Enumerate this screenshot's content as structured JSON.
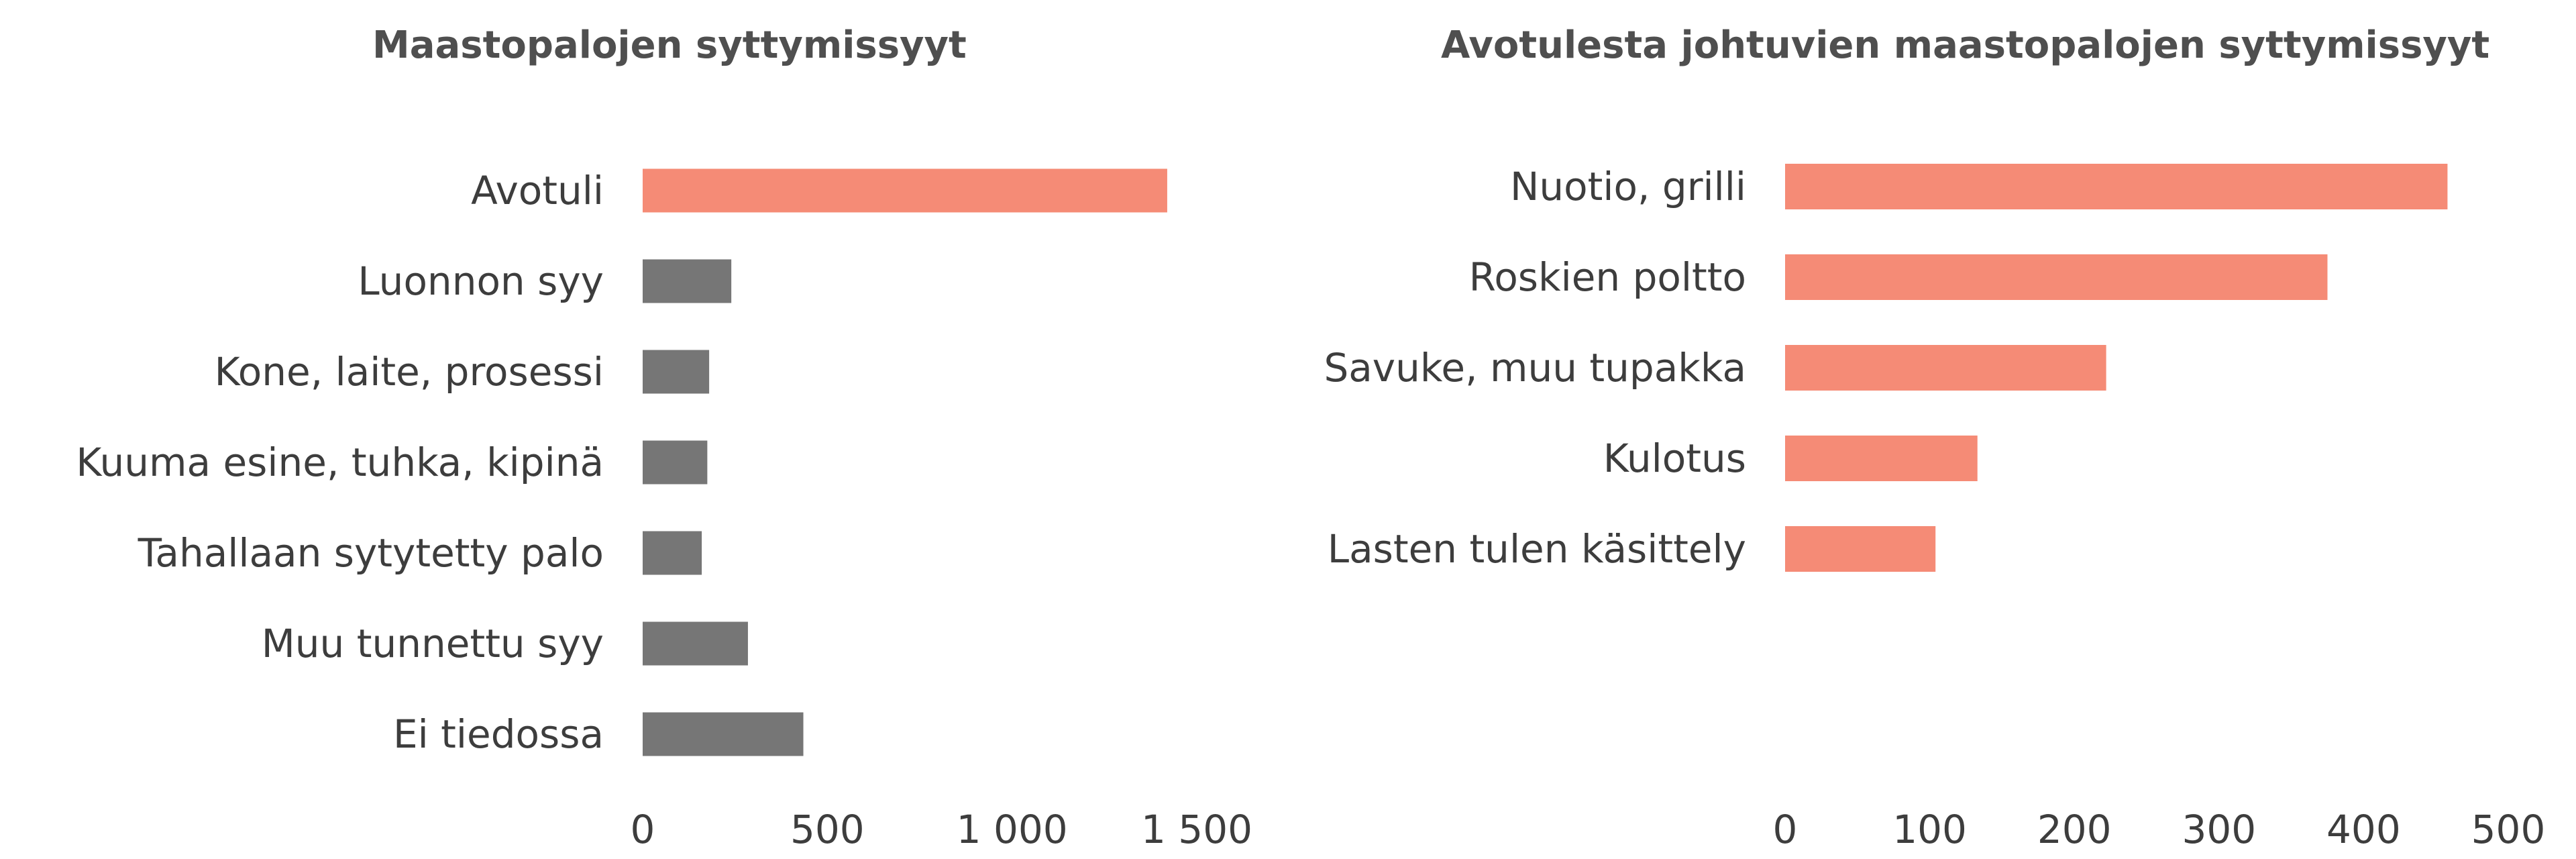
{
  "chart_data": [
    {
      "type": "bar",
      "orientation": "horizontal",
      "title": "Maastopalojen syttymissyyt",
      "categories": [
        "Avotuli",
        "Luonnon syy ",
        "Kone, laite, prosessi",
        "Kuuma esine, tuhka, kipinä",
        "Tahallaan sytytetty palo",
        "Muu tunnettu syy ",
        "Ei tiedossa"
      ],
      "values": [
        1420,
        240,
        180,
        175,
        160,
        285,
        435
      ],
      "bar_colors": [
        "#f58b76",
        "#767676",
        "#767676",
        "#767676",
        "#767676",
        "#767676",
        "#767676"
      ],
      "xlim": [
        0,
        1500
      ],
      "xticks": [
        0,
        500,
        1000,
        1500
      ],
      "xtick_labels": [
        "0",
        "500",
        "1 000",
        "1 500"
      ],
      "grid": false,
      "legend": "none"
    },
    {
      "type": "bar",
      "orientation": "horizontal",
      "title": "Avotulesta johtuvien maastopalojen syttymissyyt",
      "categories": [
        "Nuotio, grilli",
        "Roskien poltto",
        "Savuke, muu tupakka",
        "Kulotus",
        "Lasten tulen käsittely"
      ],
      "values": [
        458,
        375,
        222,
        133,
        104
      ],
      "bar_colors": [
        "#f58b76",
        "#f58b76",
        "#f58b76",
        "#f58b76",
        "#f58b76"
      ],
      "xlim": [
        0,
        500
      ],
      "xticks": [
        0,
        100,
        200,
        300,
        400,
        500
      ],
      "xtick_labels": [
        "0",
        "100",
        "200",
        "300",
        "400",
        "500"
      ],
      "grid": false,
      "legend": "none"
    }
  ]
}
